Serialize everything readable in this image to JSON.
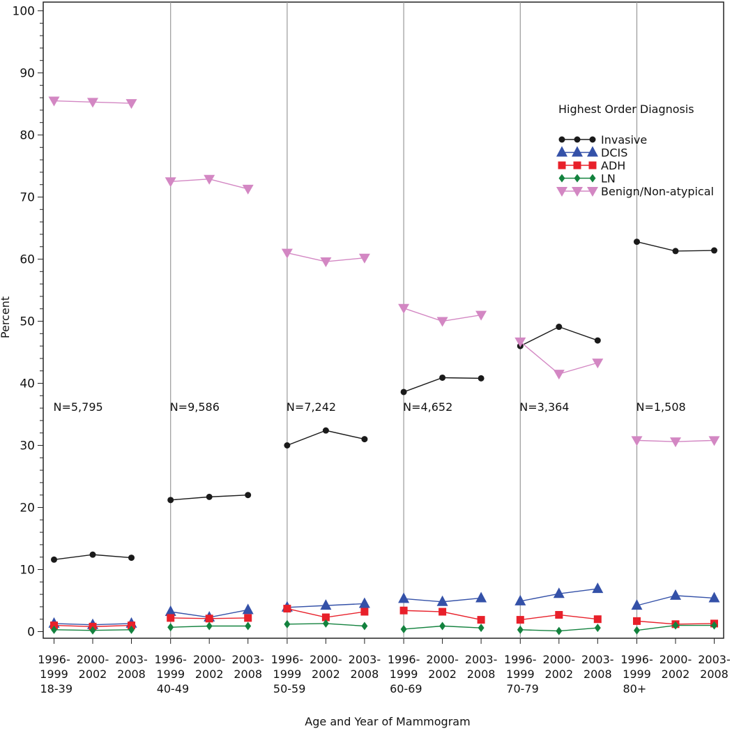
{
  "chart_data": {
    "type": "line",
    "title": "",
    "xlabel": "Age and Year of Mammogram",
    "ylabel": "Percent",
    "ylim": [
      0,
      100
    ],
    "yticks": [
      0,
      10,
      20,
      30,
      40,
      50,
      60,
      70,
      80,
      90,
      100
    ],
    "grid": false,
    "groups": [
      "18-39",
      "40-49",
      "50-59",
      "60-69",
      "70-79",
      "80+"
    ],
    "group_n": [
      "N=5,795",
      "N=9,586",
      "N=7,242",
      "N=4,652",
      "N=3,364",
      "N=1,508"
    ],
    "periods": [
      [
        "1996-",
        "1999"
      ],
      [
        "2000-",
        "2002"
      ],
      [
        "2003-",
        "2008"
      ]
    ],
    "legend": {
      "title": "Highest Order Diagnosis",
      "placement": "top-right"
    },
    "series": [
      {
        "name": "Invasive",
        "color": "#1a1a1a",
        "marker": "circle",
        "values": [
          [
            11.6,
            12.4,
            11.9
          ],
          [
            21.2,
            21.7,
            22.0
          ],
          [
            30.0,
            32.4,
            31.0
          ],
          [
            38.6,
            40.9,
            40.8
          ],
          [
            46.0,
            49.1,
            46.9
          ],
          [
            62.8,
            61.3,
            61.4
          ]
        ]
      },
      {
        "name": "DCIS",
        "color": "#3451a8",
        "marker": "triangle",
        "values": [
          [
            1.3,
            1.1,
            1.3
          ],
          [
            3.2,
            2.3,
            3.5
          ],
          [
            3.9,
            4.2,
            4.5
          ],
          [
            5.3,
            4.8,
            5.4
          ],
          [
            4.9,
            6.1,
            6.9
          ],
          [
            4.2,
            5.8,
            5.4
          ]
        ]
      },
      {
        "name": "ADH",
        "color": "#e8202a",
        "marker": "square",
        "values": [
          [
            1.0,
            0.8,
            1.0
          ],
          [
            2.2,
            2.1,
            2.2
          ],
          [
            3.7,
            2.3,
            3.2
          ],
          [
            3.4,
            3.2,
            1.9
          ],
          [
            1.9,
            2.7,
            2.0
          ],
          [
            1.7,
            1.2,
            1.3
          ]
        ]
      },
      {
        "name": "LN",
        "color": "#13823e",
        "marker": "diamond",
        "values": [
          [
            0.3,
            0.2,
            0.3
          ],
          [
            0.7,
            0.9,
            0.9
          ],
          [
            1.2,
            1.3,
            0.9
          ],
          [
            0.4,
            0.9,
            0.6
          ],
          [
            0.3,
            0.1,
            0.6
          ],
          [
            0.2,
            1.0,
            1.0
          ]
        ]
      },
      {
        "name": "Benign/Non-atypical",
        "color": "#d387c3",
        "marker": "triangle-down",
        "values": [
          [
            85.5,
            85.3,
            85.1
          ],
          [
            72.5,
            72.9,
            71.3
          ],
          [
            61.0,
            59.6,
            60.2
          ],
          [
            52.1,
            50.0,
            51.0
          ],
          [
            46.7,
            41.5,
            43.3
          ],
          [
            30.8,
            30.6,
            30.8
          ]
        ]
      }
    ]
  }
}
